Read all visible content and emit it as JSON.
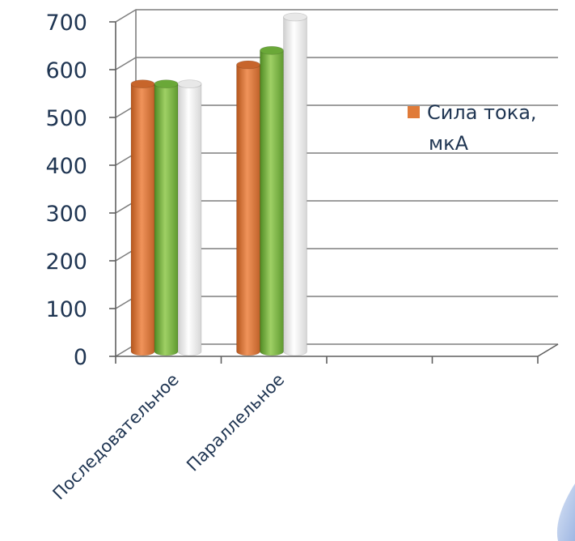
{
  "chart_data": {
    "type": "bar",
    "categories": [
      "Последовательное",
      "Параллельное"
    ],
    "series": [
      {
        "name": "Сила тока, мкА",
        "color": "#e07b39",
        "values": [
          560,
          600
        ]
      },
      {
        "color": "#7bb642",
        "values": [
          560,
          630
        ]
      },
      {
        "color": "#f5f5f5",
        "values": [
          560,
          700
        ]
      }
    ],
    "ylim": [
      0,
      700
    ],
    "yticks": [
      0,
      100,
      200,
      300,
      400,
      500,
      600,
      700
    ],
    "grid": true,
    "legend": {
      "position": "right",
      "lines": [
        "Сила тока,",
        "мкА"
      ]
    }
  }
}
